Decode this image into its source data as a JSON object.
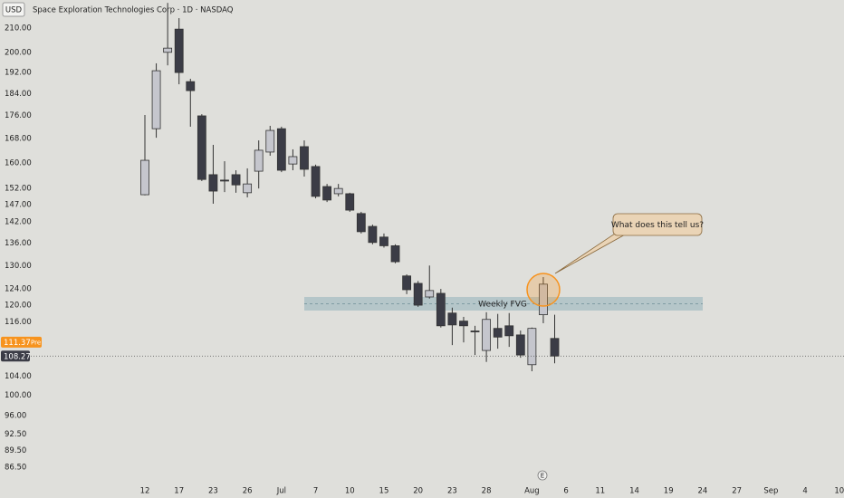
{
  "chart_data": {
    "type": "candlestick",
    "currency": "USD",
    "title": "Space Exploration Technologies Corp · 1D · NASDAQ",
    "categories": [
      "12",
      null,
      null,
      "17",
      null,
      null,
      "23",
      null,
      null,
      "26",
      null,
      null,
      "Jul",
      null,
      null,
      "7",
      null,
      null,
      "10",
      null,
      null,
      "15",
      null,
      null,
      "20",
      null,
      null,
      "23",
      null,
      null,
      "28",
      null,
      null,
      null,
      "Aug",
      null,
      null,
      "6",
      null,
      null,
      "11",
      null,
      null,
      "14",
      null,
      null,
      "19",
      null,
      null,
      "24",
      null,
      null,
      "27",
      null,
      null,
      "Sep",
      null,
      null,
      "4",
      null,
      null,
      "10"
    ],
    "open": [
      150.0,
      171.4,
      200.0,
      209.6,
      188.5,
      175.9,
      156.2,
      154.5,
      156.2,
      150.6,
      157.3,
      163.5,
      171.4,
      159.6,
      165.3,
      158.8,
      152.5,
      150.3,
      150.3,
      144.4,
      140.7,
      137.7,
      135.3,
      127.3,
      125.4,
      122.0,
      122.9,
      118.1,
      116.2,
      113.9,
      109.5,
      114.5,
      115.1,
      113.0,
      106.4,
      117.7,
      112.2,
      null,
      null,
      null,
      null,
      null,
      null,
      null,
      null,
      null,
      null,
      null,
      null,
      null,
      null,
      null,
      null,
      null,
      null,
      null,
      null,
      null,
      null,
      null,
      null,
      null
    ],
    "high": [
      176.2,
      195.6,
      221,
      214.3,
      189.6,
      176.5,
      165.9,
      160.5,
      157.6,
      158.2,
      167.4,
      172.4,
      172.1,
      164.4,
      167.4,
      159.4,
      153.3,
      153.3,
      150.6,
      144.9,
      141.2,
      138.7,
      135.7,
      127.7,
      126.0,
      130.0,
      124.0,
      119.4,
      117.2,
      115.1,
      118.3,
      117.9,
      118.1,
      114.0,
      114.7,
      127.0,
      117.7,
      null,
      null,
      null,
      null,
      null,
      null,
      null,
      null,
      null,
      null,
      null,
      null,
      null,
      null,
      null,
      null,
      null,
      null,
      null,
      null,
      null,
      null,
      null,
      null,
      null
    ],
    "low": [
      149.8,
      168.3,
      194.8,
      187.5,
      172.1,
      154.2,
      147.3,
      150.8,
      150.6,
      149.2,
      151.9,
      162.3,
      157.0,
      157.6,
      155.6,
      148.9,
      147.8,
      149.5,
      144.9,
      138.7,
      135.7,
      134.8,
      130.6,
      122.7,
      119.6,
      121.6,
      114.7,
      110.7,
      111.3,
      108.5,
      107.0,
      109.9,
      110.3,
      107.9,
      105.0,
      115.7,
      106.7,
      null,
      null,
      null,
      null,
      null,
      null,
      null,
      null,
      null,
      null,
      null,
      null,
      null,
      null,
      null,
      null,
      null,
      null,
      null,
      null,
      null,
      null,
      null,
      null,
      null
    ],
    "close": [
      160.8,
      192.7,
      201.7,
      192.0,
      185.1,
      154.7,
      151.1,
      154.2,
      153.0,
      153.3,
      164.1,
      170.8,
      157.6,
      162.0,
      157.9,
      149.5,
      148.4,
      151.9,
      145.4,
      139.2,
      136.2,
      135.3,
      131.0,
      123.8,
      120.0,
      123.6,
      115.1,
      115.3,
      115.1,
      113.7,
      116.6,
      112.5,
      112.8,
      108.5,
      114.5,
      125.2,
      108.27,
      null,
      null,
      null,
      null,
      null,
      null,
      null,
      null,
      null,
      null,
      null,
      null,
      null,
      null,
      null,
      null,
      null,
      null,
      null,
      null,
      null,
      null,
      null,
      null,
      null
    ],
    "up_color": "#c5c6cd",
    "down_color": "#3b3c46",
    "log_scale": true,
    "ylim": [
      84.0,
      222.3
    ],
    "yticks": [
      {
        "value": 210,
        "label": "210.00"
      },
      {
        "value": 200,
        "label": "200.00"
      },
      {
        "value": 192,
        "label": "192.00"
      },
      {
        "value": 184,
        "label": "184.00"
      },
      {
        "value": 176,
        "label": "176.00"
      },
      {
        "value": 168,
        "label": "168.00"
      },
      {
        "value": 160,
        "label": "160.00"
      },
      {
        "value": 152,
        "label": "152.00"
      },
      {
        "value": 147,
        "label": "147.00"
      },
      {
        "value": 142,
        "label": "142.00"
      },
      {
        "value": 136,
        "label": "136.00"
      },
      {
        "value": 130,
        "label": "130.00"
      },
      {
        "value": 124,
        "label": "124.00"
      },
      {
        "value": 120,
        "label": "120.00"
      },
      {
        "value": 116,
        "label": "116.00"
      },
      {
        "value": 104,
        "label": "104.00"
      },
      {
        "value": 100,
        "label": "100.00"
      },
      {
        "value": 96,
        "label": "96.00"
      },
      {
        "value": 92.5,
        "label": "92.50"
      },
      {
        "value": 89.5,
        "label": "89.50"
      },
      {
        "value": 86.5,
        "label": "86.50"
      }
    ],
    "premarket_price": 111.37,
    "premarket_label": "Pre",
    "premarket_color": "#f7931e",
    "fvg": {
      "label": "Weekly FVG",
      "top": 122.0,
      "bottom": 118.7,
      "color": "#a7bec3"
    },
    "annotation": "What does this tell us?",
    "earnings_marker": "E"
  }
}
